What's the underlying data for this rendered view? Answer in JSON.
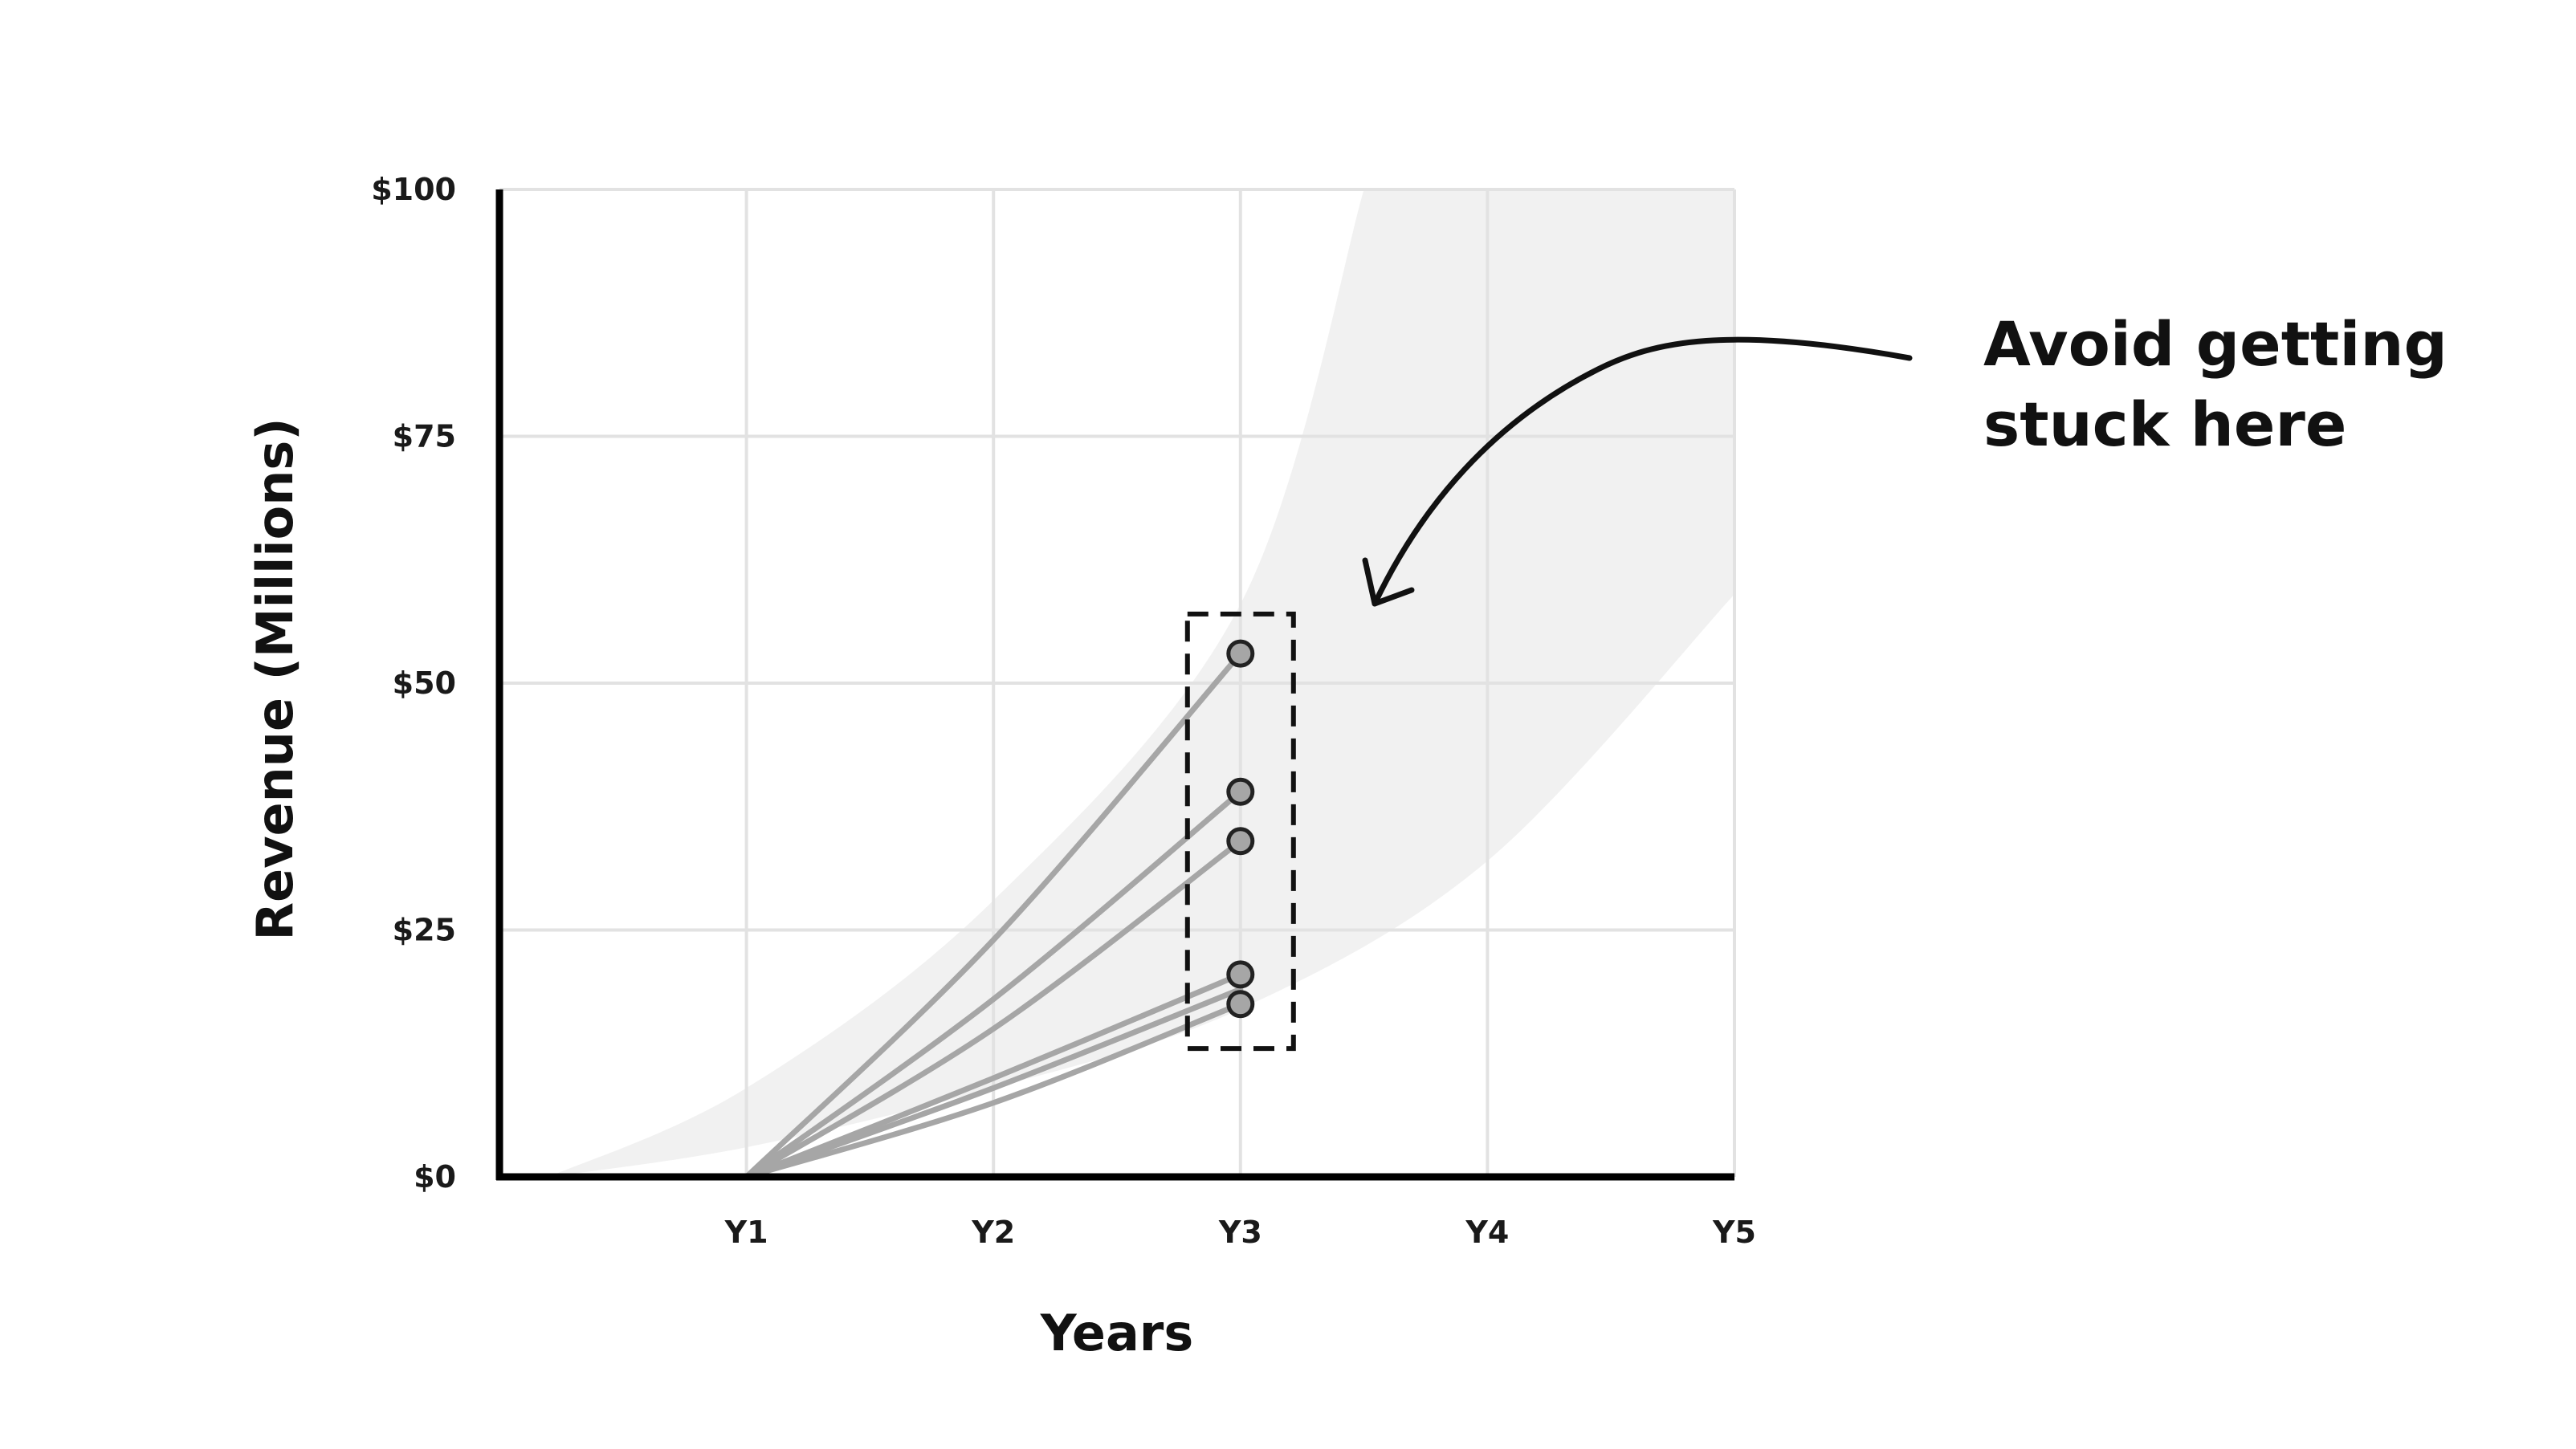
{
  "chart_data": {
    "type": "line",
    "title": "",
    "xlabel": "Years",
    "ylabel": "Revenue (Millions)",
    "x_categories": [
      "Y1",
      "Y2",
      "Y3",
      "Y4",
      "Y5"
    ],
    "y_ticks": [
      "$0",
      "$25",
      "$50",
      "$75",
      "$100"
    ],
    "y_tick_values": [
      0,
      25,
      50,
      75,
      100
    ],
    "ylim": [
      0,
      100
    ],
    "xlim": [
      0,
      5
    ],
    "grid": true,
    "band": {
      "description": "",
      "upper": [
        [
          0.2,
          0
        ],
        [
          1,
          9
        ],
        [
          2,
          28
        ],
        [
          3,
          58
        ],
        [
          3.5,
          100
        ]
      ],
      "lower": [
        [
          0.2,
          0
        ],
        [
          1,
          3
        ],
        [
          2,
          9
        ],
        [
          3,
          17
        ],
        [
          4,
          32
        ],
        [
          5,
          59
        ]
      ]
    },
    "series": [
      {
        "values": [
          [
            1,
            0
          ],
          [
            2,
            24
          ],
          [
            3,
            53
          ]
        ]
      },
      {
        "values": [
          [
            1,
            0
          ],
          [
            2,
            18
          ],
          [
            3,
            39
          ]
        ]
      },
      {
        "values": [
          [
            1,
            0
          ],
          [
            2,
            15
          ],
          [
            3,
            34
          ]
        ]
      },
      {
        "values": [
          [
            1,
            0
          ],
          [
            2,
            10
          ],
          [
            3,
            20.5
          ]
        ]
      },
      {
        "values": [
          [
            1,
            0
          ],
          [
            2,
            9
          ],
          [
            3,
            19
          ]
        ]
      },
      {
        "values": [
          [
            1,
            0
          ],
          [
            2,
            7.5
          ],
          [
            3,
            17.5
          ]
        ]
      }
    ],
    "highlight_box": {
      "x": 3,
      "y_range": [
        13,
        57
      ]
    },
    "annotation": {
      "lines": [
        "Avoid getting",
        "stuck here"
      ]
    },
    "colors": {
      "axis": "#000000",
      "grid": "#e2e2e2",
      "band": "#f1f1f1",
      "series": "#a6a6a6",
      "marker_fill": "#a6a6a6",
      "marker_stroke": "#222222",
      "box": "#111111"
    }
  }
}
